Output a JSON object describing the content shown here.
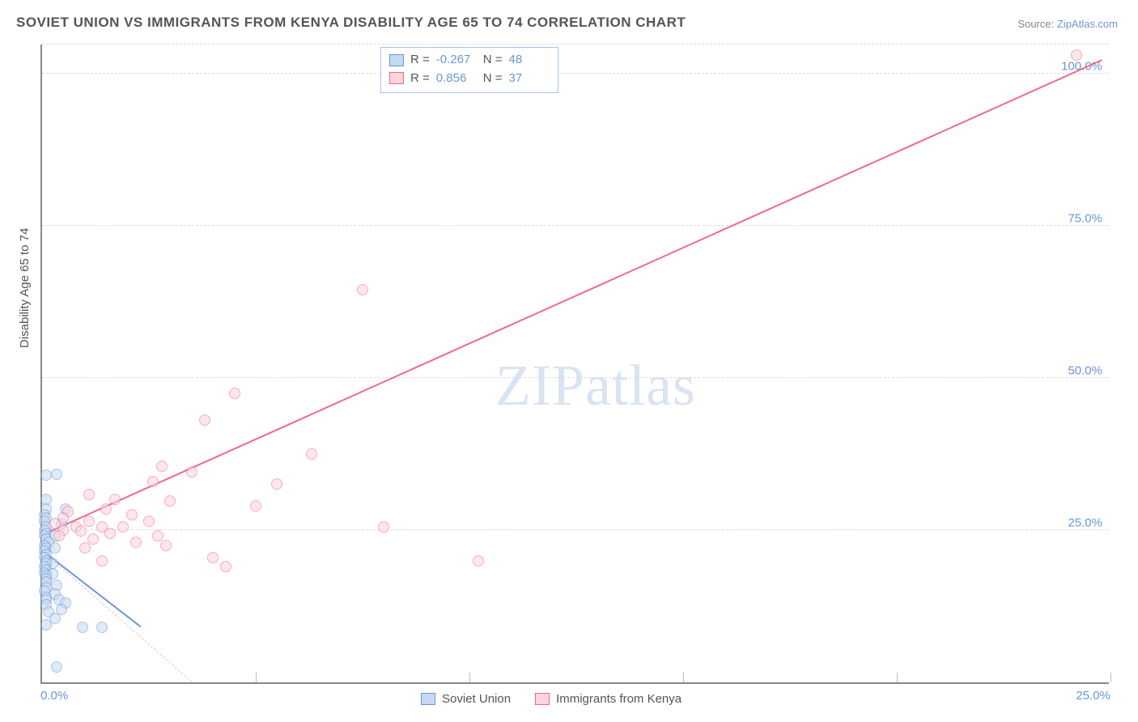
{
  "title": "SOVIET UNION VS IMMIGRANTS FROM KENYA DISABILITY AGE 65 TO 74 CORRELATION CHART",
  "source_label": "Source:",
  "source_name": "ZipAtlas.com",
  "ylabel": "Disability Age 65 to 74",
  "watermark": "ZIPatlas",
  "chart": {
    "type": "scatter",
    "xlim": [
      0,
      25
    ],
    "ylim": [
      0,
      105
    ],
    "xticks": [
      0,
      5,
      10,
      15,
      20,
      25
    ],
    "xtick_labels": [
      "0.0%",
      "",
      "",
      "",
      "",
      "25.0%"
    ],
    "yticks": [
      25,
      50,
      75,
      100
    ],
    "ytick_labels": [
      "25.0%",
      "50.0%",
      "75.0%",
      "100.0%"
    ],
    "grid_color": "#dddddd",
    "background_color": "#ffffff",
    "axis_color": "#888888",
    "label_color": "#6b95d6",
    "marker_radius": 7,
    "marker_stroke_width": 1.5,
    "trend_line_width": 2
  },
  "series": [
    {
      "name": "Soviet Union",
      "fill": "#c5d9f1",
      "stroke": "#6b95d6",
      "fill_opacity": 0.55,
      "R": "-0.267",
      "N": "48",
      "trend": {
        "x1": 0.0,
        "y1": 21.5,
        "x2": 2.3,
        "y2": 9.0
      },
      "points": [
        [
          0.1,
          34.0
        ],
        [
          0.35,
          34.2
        ],
        [
          0.1,
          30.0
        ],
        [
          0.1,
          28.5
        ],
        [
          0.55,
          28.5
        ],
        [
          0.05,
          27.5
        ],
        [
          0.1,
          27.0
        ],
        [
          0.05,
          26.5
        ],
        [
          0.45,
          26.0
        ],
        [
          0.1,
          25.5
        ],
        [
          0.05,
          25.0
        ],
        [
          0.1,
          24.5
        ],
        [
          0.05,
          24.0
        ],
        [
          0.3,
          24.0
        ],
        [
          0.1,
          23.5
        ],
        [
          0.15,
          23.0
        ],
        [
          0.05,
          22.5
        ],
        [
          0.1,
          22.0
        ],
        [
          0.3,
          22.0
        ],
        [
          0.05,
          21.5
        ],
        [
          0.1,
          21.0
        ],
        [
          0.05,
          20.5
        ],
        [
          0.1,
          20.0
        ],
        [
          0.25,
          19.5
        ],
        [
          0.1,
          19.5
        ],
        [
          0.05,
          19.0
        ],
        [
          0.1,
          18.5
        ],
        [
          0.05,
          18.0
        ],
        [
          0.25,
          17.8
        ],
        [
          0.1,
          17.5
        ],
        [
          0.1,
          17.0
        ],
        [
          0.1,
          16.5
        ],
        [
          0.35,
          16.0
        ],
        [
          0.1,
          15.5
        ],
        [
          0.05,
          15.0
        ],
        [
          0.3,
          14.5
        ],
        [
          0.1,
          14.0
        ],
        [
          0.1,
          13.5
        ],
        [
          0.4,
          13.5
        ],
        [
          0.55,
          13.0
        ],
        [
          0.1,
          12.8
        ],
        [
          0.45,
          12.0
        ],
        [
          0.15,
          11.5
        ],
        [
          0.3,
          10.5
        ],
        [
          0.1,
          9.5
        ],
        [
          0.95,
          9.0
        ],
        [
          1.4,
          9.0
        ],
        [
          0.35,
          2.5
        ]
      ]
    },
    {
      "name": "Immigrants from Kenya",
      "fill": "#fbd4de",
      "stroke": "#ec6b8c",
      "fill_opacity": 0.55,
      "R": "0.856",
      "N": "37",
      "trend": {
        "x1": 0.0,
        "y1": 24.0,
        "x2": 24.8,
        "y2": 102.0
      },
      "points": [
        [
          24.2,
          103.0
        ],
        [
          7.5,
          64.5
        ],
        [
          4.5,
          47.5
        ],
        [
          3.8,
          43.0
        ],
        [
          6.3,
          37.5
        ],
        [
          2.8,
          35.5
        ],
        [
          3.5,
          34.5
        ],
        [
          5.5,
          32.5
        ],
        [
          8.0,
          25.5
        ],
        [
          2.6,
          33.0
        ],
        [
          1.1,
          30.8
        ],
        [
          1.7,
          30.0
        ],
        [
          3.0,
          29.8
        ],
        [
          5.0,
          29.0
        ],
        [
          0.6,
          28.0
        ],
        [
          1.5,
          28.5
        ],
        [
          2.1,
          27.5
        ],
        [
          0.5,
          27.0
        ],
        [
          2.5,
          26.5
        ],
        [
          1.1,
          26.5
        ],
        [
          0.3,
          26.0
        ],
        [
          0.8,
          25.5
        ],
        [
          1.4,
          25.5
        ],
        [
          1.9,
          25.5
        ],
        [
          0.5,
          25.0
        ],
        [
          0.9,
          24.8
        ],
        [
          1.6,
          24.5
        ],
        [
          2.7,
          24.0
        ],
        [
          0.4,
          24.0
        ],
        [
          1.2,
          23.5
        ],
        [
          2.2,
          23.0
        ],
        [
          2.9,
          22.5
        ],
        [
          1.0,
          22.0
        ],
        [
          4.0,
          20.5
        ],
        [
          4.3,
          19.0
        ],
        [
          1.4,
          20.0
        ],
        [
          10.2,
          20.0
        ]
      ]
    }
  ],
  "stats_legend": {
    "r_label": "R =",
    "n_label": "N ="
  },
  "bottom_legend": {
    "items": [
      "Soviet Union",
      "Immigrants from Kenya"
    ]
  }
}
